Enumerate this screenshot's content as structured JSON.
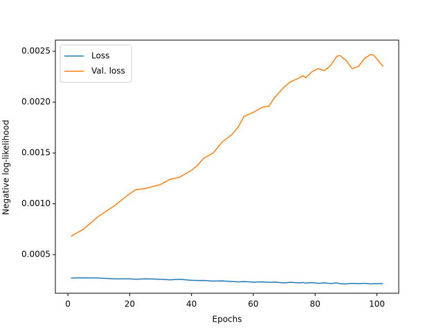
{
  "chart_data": {
    "type": "line",
    "x_label": "Epochs",
    "y_label": "Negative log-likelihood",
    "x": [
      1,
      5,
      10,
      15,
      20,
      22,
      25,
      30,
      33,
      36,
      40,
      42,
      44,
      47,
      50,
      53,
      55,
      57,
      60,
      63,
      65,
      67,
      70,
      72,
      75,
      76,
      77,
      79,
      81,
      83,
      85,
      87,
      88,
      90,
      92,
      94,
      96,
      98,
      99,
      102
    ],
    "series": [
      {
        "name": "Loss",
        "color": "#1f77b4",
        "values": [
          0.00027,
          0.000272,
          0.00027,
          0.000262,
          0.000262,
          0.000258,
          0.000262,
          0.000258,
          0.000252,
          0.000258,
          0.000248,
          0.000245,
          0.000246,
          0.00024,
          0.000242,
          0.000236,
          0.000232,
          0.000235,
          0.00023,
          0.000232,
          0.000228,
          0.00023,
          0.000222,
          0.000228,
          0.000222,
          0.000226,
          0.00022,
          0.000225,
          0.000218,
          0.000222,
          0.000216,
          0.000222,
          0.000214,
          0.000212,
          0.000218,
          0.000214,
          0.000218,
          0.000212,
          0.000214,
          0.000214
        ]
      },
      {
        "name": "Val. loss",
        "color": "#ff7f0e",
        "values": [
          0.00068,
          0.00075,
          0.00088,
          0.00098,
          0.0011,
          0.00114,
          0.00115,
          0.00119,
          0.00124,
          0.00126,
          0.00133,
          0.00138,
          0.00145,
          0.0015,
          0.00161,
          0.00168,
          0.00175,
          0.00186,
          0.0019,
          0.00195,
          0.00196,
          0.00205,
          0.00215,
          0.0022,
          0.00224,
          0.00226,
          0.00224,
          0.0023,
          0.00233,
          0.00231,
          0.00236,
          0.00245,
          0.00246,
          0.00241,
          0.00233,
          0.00235,
          0.00243,
          0.00247,
          0.00246,
          0.00235
        ]
      }
    ],
    "xlim": [
      -4.05,
      107.05
    ],
    "xticks": [
      0,
      20,
      40,
      60,
      80,
      100
    ],
    "ylim": [
      0.00012,
      0.00261
    ],
    "yticks": [
      0.0005,
      {
        "value": 0.001,
        "label": "0.0010"
      },
      0.0015,
      {
        "value": 0.002,
        "label": "0.0020"
      },
      0.0025
    ],
    "legend": "upper left",
    "grid": false
  }
}
